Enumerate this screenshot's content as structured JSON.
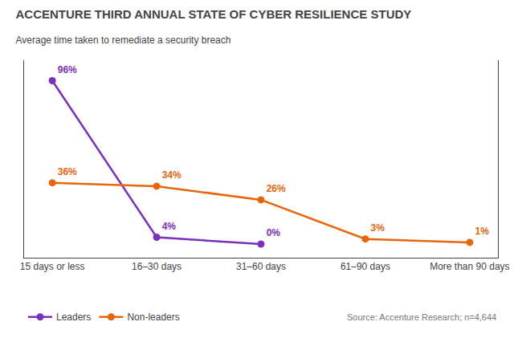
{
  "chart_data": {
    "type": "line",
    "title": "ACCENTURE THIRD ANNUAL STATE OF CYBER RESILIENCE STUDY",
    "subtitle": "Average time taken to remediate a security breach",
    "annotations": [
      "Source: Accenture Research; n=4,644"
    ],
    "categories": [
      "15 days or less",
      "16–30 days",
      "31–60 days",
      "61–90 days",
      "More than 90 days"
    ],
    "series": [
      {
        "name": "Leaders",
        "color": "#7B2FBE",
        "marker": "circle",
        "values": [
          96,
          4,
          0,
          null,
          null
        ],
        "value_labels": [
          "96%",
          "4%",
          "0%",
          null,
          null
        ]
      },
      {
        "name": "Non-leaders",
        "color": "#E8650A",
        "marker": "circle",
        "values": [
          36,
          34,
          26,
          3,
          1
        ],
        "value_labels": [
          "36%",
          "34%",
          "26%",
          "3%",
          "1%"
        ]
      }
    ],
    "ylim": [
      -8,
      108
    ],
    "tick_labels": "x",
    "data_labels": true,
    "grid": false,
    "legend": "bottom"
  }
}
